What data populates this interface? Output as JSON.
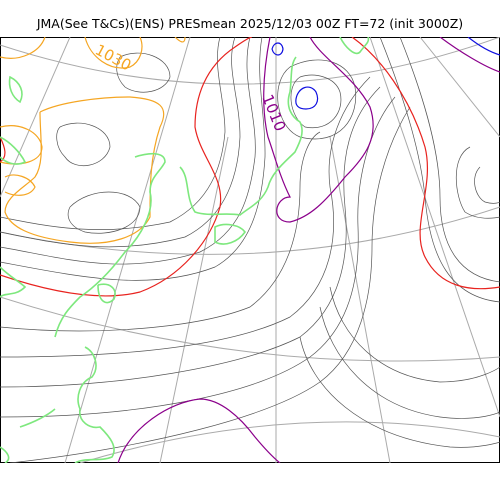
{
  "title": "JMA(See T&Cs)(ENS) PRESmean 2025/12/03 00Z FT=72 (init 3000Z)",
  "contour_labels": {
    "high": "1030",
    "low": "1010"
  },
  "colors": {
    "isobar": "#555555",
    "hpa_1030": "#f5a623",
    "hpa_1020": "#e8231f",
    "hpa_1010": "#8b008b",
    "hpa_1000": "#1010e0",
    "coastline": "#7ee87e",
    "graticule": "#aaaaaa"
  }
}
